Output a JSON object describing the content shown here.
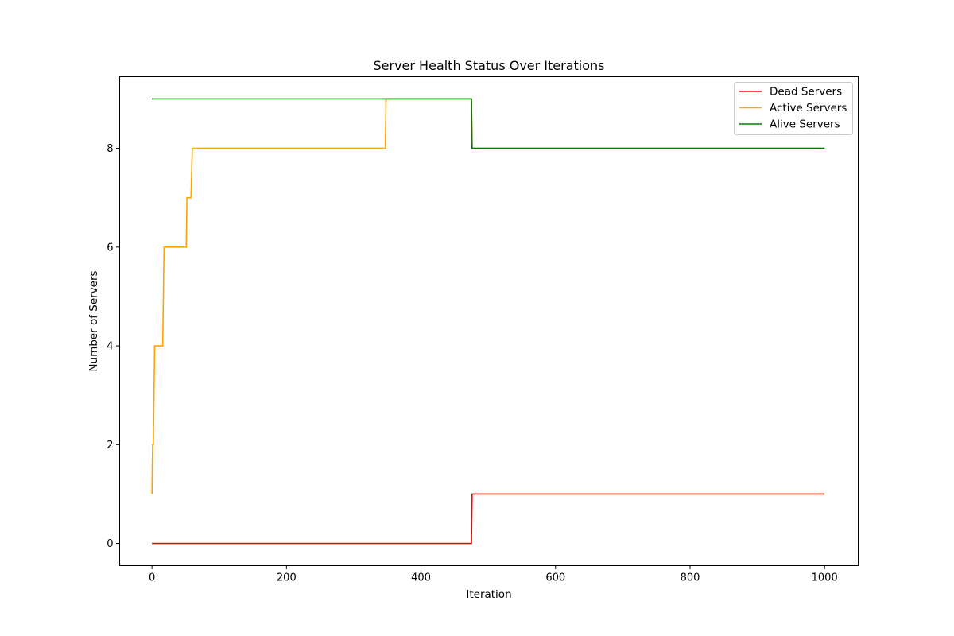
{
  "chart_data": {
    "type": "line",
    "title": "Server Health Status Over Iterations",
    "xlabel": "Iteration",
    "ylabel": "Number of Servers",
    "xlim": [
      -48,
      1050
    ],
    "ylim": [
      -0.45,
      9.45
    ],
    "xticks": [
      0,
      200,
      400,
      600,
      800,
      1000
    ],
    "yticks": [
      0,
      2,
      4,
      6,
      8
    ],
    "grid": false,
    "legend_position": "top-right",
    "series": [
      {
        "name": "Dead Servers",
        "color": "#ff0000",
        "points": [
          [
            0,
            0
          ],
          [
            475,
            0
          ],
          [
            476,
            1
          ],
          [
            1000,
            1
          ]
        ]
      },
      {
        "name": "Active Servers",
        "color": "#ffa500",
        "points": [
          [
            0,
            1
          ],
          [
            1,
            2
          ],
          [
            2,
            2
          ],
          [
            4,
            4
          ],
          [
            16,
            4
          ],
          [
            18,
            6
          ],
          [
            51,
            6
          ],
          [
            52,
            7
          ],
          [
            58,
            7
          ],
          [
            60,
            8
          ],
          [
            347,
            8
          ],
          [
            348,
            9
          ],
          [
            475,
            9
          ],
          [
            476,
            8
          ],
          [
            1000,
            8
          ]
        ]
      },
      {
        "name": "Alive Servers",
        "color": "#008000",
        "points": [
          [
            0,
            9
          ],
          [
            475,
            9
          ],
          [
            476,
            8
          ],
          [
            1000,
            8
          ]
        ]
      }
    ]
  }
}
